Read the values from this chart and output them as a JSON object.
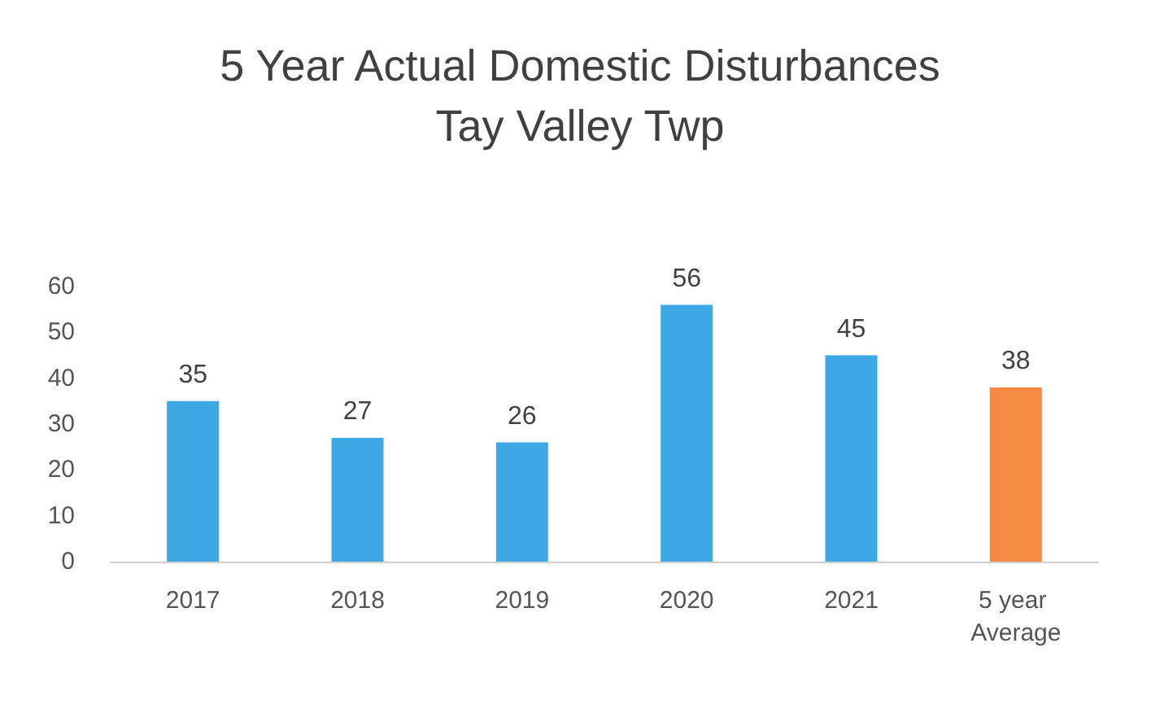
{
  "chart_data": {
    "type": "bar",
    "title": "5 Year Actual Domestic Disturbances",
    "subtitle": "Tay Valley Twp",
    "categories": [
      "2017",
      "2018",
      "2019",
      "2020",
      "2021",
      "5 year Average"
    ],
    "values": [
      35,
      27,
      26,
      56,
      45,
      38
    ],
    "colors": [
      "#3ea8e5",
      "#3ea8e5",
      "#3ea8e5",
      "#3ea8e5",
      "#3ea8e5",
      "#f58a45"
    ],
    "ylim": [
      0,
      60
    ],
    "yticks": [
      0,
      10,
      20,
      30,
      40,
      50,
      60
    ],
    "grid": false,
    "data_labels": true
  }
}
